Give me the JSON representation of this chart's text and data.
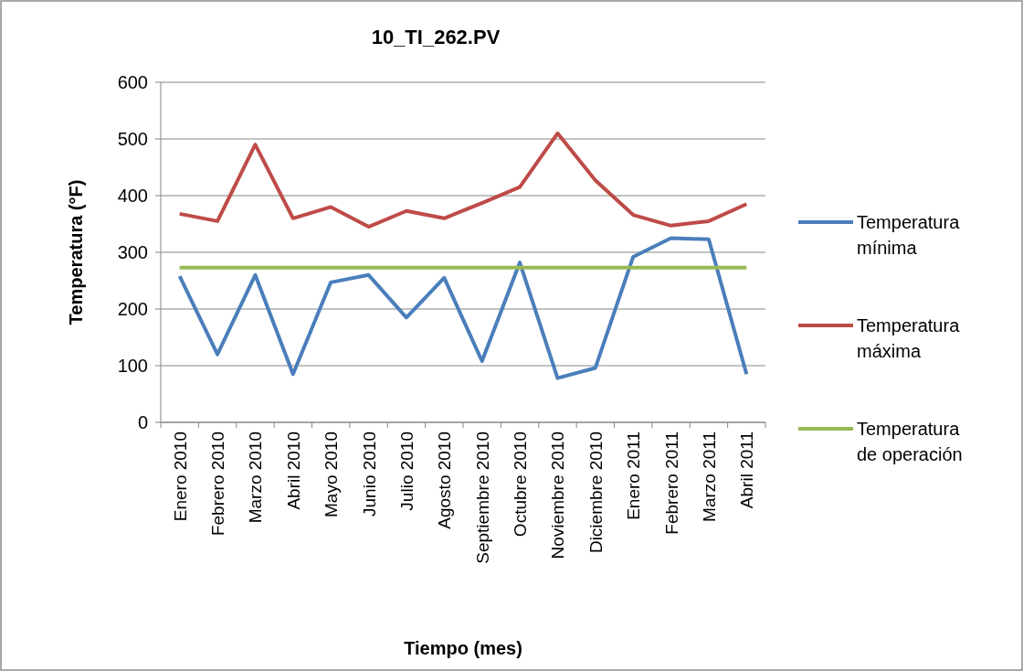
{
  "chart_data": {
    "type": "line",
    "title": "10_TI_262.PV",
    "xlabel": "Tiempo (mes)",
    "ylabel": "Temperatura (°F)",
    "categories": [
      "Enero 2010",
      "Febrero 2010",
      "Marzo 2010",
      "Abril 2010",
      "Mayo 2010",
      "Junio 2010",
      "Julio 2010",
      "Agosto 2010",
      "Septiembre 2010",
      "Octubre 2010",
      "Noviembre 2010",
      "Diciembre 2010",
      "Enero 2011",
      "Febrero 2011",
      "Marzo 2011",
      "Abril 2011"
    ],
    "series": [
      {
        "name": "Temperatura mínima",
        "color": "#4a7ebb",
        "values": [
          258,
          120,
          260,
          85,
          247,
          260,
          185,
          255,
          108,
          282,
          78,
          96,
          292,
          325,
          323,
          85
        ]
      },
      {
        "name": "Temperatura máxima",
        "color": "#be4b48",
        "values": [
          368,
          355,
          490,
          360,
          380,
          345,
          373,
          360,
          387,
          415,
          510,
          427,
          366,
          347,
          355,
          385
        ]
      },
      {
        "name": "Temperatura de operación",
        "color": "#98b954",
        "values": [
          273,
          273,
          273,
          273,
          273,
          273,
          273,
          273,
          273,
          273,
          273,
          273,
          273,
          273,
          273,
          273
        ]
      }
    ],
    "ylim": [
      0,
      600
    ],
    "yticks": [
      0,
      100,
      200,
      300,
      400,
      500,
      600
    ],
    "grid": "y",
    "legend": "right",
    "marker": "none",
    "line_style": "solid"
  }
}
